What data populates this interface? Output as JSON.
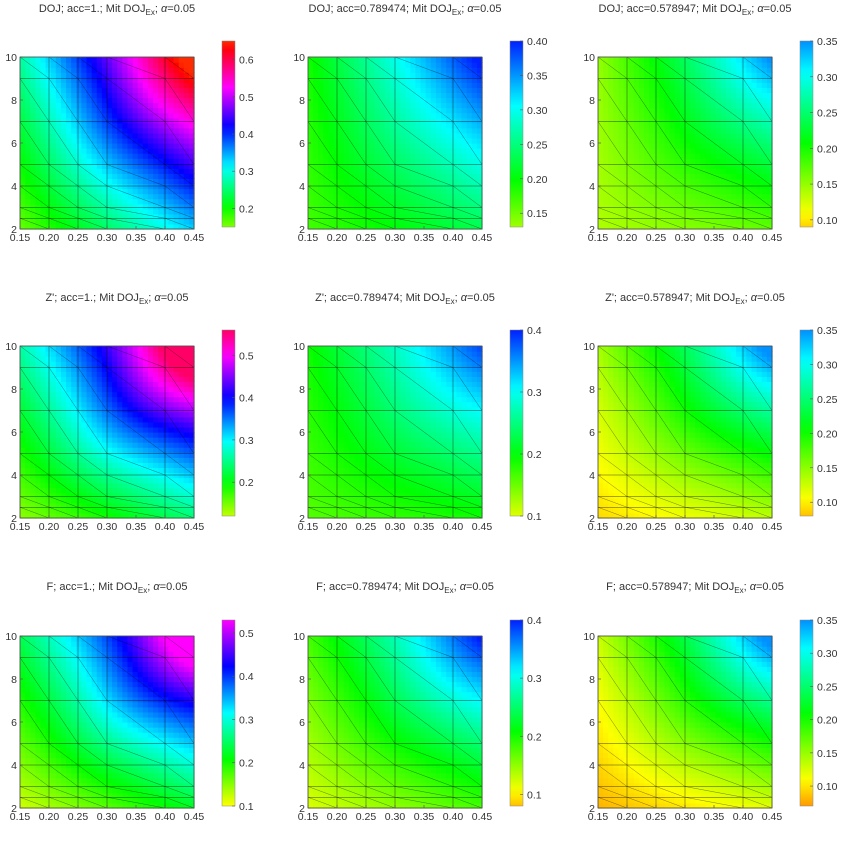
{
  "chart_data": [
    {
      "type": "heatmap",
      "metric": "DOJ",
      "acc": "1.",
      "alpha": "0.05",
      "title": {
        "pre": "DOJ; acc=1.; Mit DOJ",
        "sub": "Ex",
        "mid": "; ",
        "greek": "α",
        "post": "=0.05"
      },
      "xticks": [
        "0.15",
        "0.20",
        "0.25",
        "0.30",
        "0.35",
        "0.40",
        "0.45"
      ],
      "yticks": [
        "2",
        "4",
        "6",
        "8",
        "10"
      ],
      "xlim": [
        0.15,
        0.45
      ],
      "ylim": [
        2,
        10
      ],
      "colorbar": {
        "ticks": [
          "0.2",
          "0.3",
          "0.4",
          "0.5",
          "0.6"
        ],
        "range": [
          0.15,
          0.65
        ],
        "min_color": "#80ff00",
        "max_color": "#ff2a00"
      },
      "corners": {
        "bottom_left": 0.16,
        "bottom_right": 0.33,
        "top_left": 0.27,
        "top_right": 0.63,
        "center": 0.33,
        "diagonal_ridge": 0.38
      }
    },
    {
      "type": "heatmap",
      "metric": "DOJ",
      "acc": "0.789474",
      "alpha": "0.05",
      "title": {
        "pre": "DOJ; acc=0.789474; Mit DOJ",
        "sub": "Ex",
        "mid": "; ",
        "greek": "α",
        "post": "=0.05"
      },
      "xticks": [
        "0.15",
        "0.20",
        "0.25",
        "0.30",
        "0.35",
        "0.40",
        "0.45"
      ],
      "yticks": [
        "2",
        "4",
        "6",
        "8",
        "10"
      ],
      "xlim": [
        0.15,
        0.45
      ],
      "ylim": [
        2,
        10
      ],
      "colorbar": {
        "ticks": [
          "0.15",
          "0.20",
          "0.25",
          "0.30",
          "0.35",
          "0.40"
        ],
        "range": [
          0.13,
          0.4
        ],
        "min_color": "#a0ff00",
        "max_color": "#0020ff"
      },
      "corners": {
        "bottom_left": 0.17,
        "bottom_right": 0.23,
        "top_left": 0.19,
        "top_right": 0.4,
        "center": 0.22,
        "diagonal_ridge": 0.23
      }
    },
    {
      "type": "heatmap",
      "metric": "DOJ",
      "acc": "0.578947",
      "alpha": "0.05",
      "title": {
        "pre": "DOJ; acc=0.578947; Mit DOJ",
        "sub": "Ex",
        "mid": "; ",
        "greek": "α",
        "post": "=0.05"
      },
      "xticks": [
        "0.15",
        "0.20",
        "0.25",
        "0.30",
        "0.35",
        "0.40",
        "0.45"
      ],
      "yticks": [
        "2",
        "4",
        "6",
        "8",
        "10"
      ],
      "xlim": [
        0.15,
        0.45
      ],
      "ylim": [
        2,
        10
      ],
      "colorbar": {
        "ticks": [
          "0.10",
          "0.15",
          "0.20",
          "0.25",
          "0.30",
          "0.35"
        ],
        "range": [
          0.09,
          0.35
        ],
        "min_color": "#ffd000",
        "max_color": "#0090ff"
      },
      "corners": {
        "bottom_left": 0.14,
        "bottom_right": 0.17,
        "top_left": 0.15,
        "top_right": 0.33,
        "center": 0.16,
        "diagonal_ridge": 0.18
      }
    },
    {
      "type": "heatmap",
      "metric": "Z'",
      "acc": "1.",
      "alpha": "0.05",
      "title": {
        "pre": "Z'; acc=1.; Mit DOJ",
        "sub": "Ex",
        "mid": "; ",
        "greek": "α",
        "post": "=0.05"
      },
      "xticks": [
        "0.15",
        "0.20",
        "0.25",
        "0.30",
        "0.35",
        "0.40",
        "0.45"
      ],
      "yticks": [
        "2",
        "4",
        "6",
        "8",
        "10"
      ],
      "xlim": [
        0.15,
        0.45
      ],
      "ylim": [
        2,
        10
      ],
      "colorbar": {
        "ticks": [
          "0.2",
          "0.3",
          "0.4",
          "0.5"
        ],
        "range": [
          0.12,
          0.56
        ],
        "min_color": "#c0ff00",
        "max_color": "#ff0066"
      },
      "corners": {
        "bottom_left": 0.14,
        "bottom_right": 0.24,
        "top_left": 0.26,
        "top_right": 0.55,
        "center": 0.26,
        "diagonal_ridge": 0.34
      }
    },
    {
      "type": "heatmap",
      "metric": "Z'",
      "acc": "0.789474",
      "alpha": "0.05",
      "title": {
        "pre": "Z'; acc=0.789474; Mit DOJ",
        "sub": "Ex",
        "mid": "; ",
        "greek": "α",
        "post": "=0.05"
      },
      "xticks": [
        "0.15",
        "0.20",
        "0.25",
        "0.30",
        "0.35",
        "0.40",
        "0.45"
      ],
      "yticks": [
        "2",
        "4",
        "6",
        "8",
        "10"
      ],
      "xlim": [
        0.15,
        0.45
      ],
      "ylim": [
        2,
        10
      ],
      "colorbar": {
        "ticks": [
          "0.1",
          "0.2",
          "0.3",
          "0.4"
        ],
        "range": [
          0.1,
          0.4
        ],
        "min_color": "#e0ff00",
        "max_color": "#0020ff"
      },
      "corners": {
        "bottom_left": 0.16,
        "bottom_right": 0.19,
        "top_left": 0.19,
        "top_right": 0.36,
        "center": 0.2,
        "diagonal_ridge": 0.22
      }
    },
    {
      "type": "heatmap",
      "metric": "Z'",
      "acc": "0.578947",
      "alpha": "0.05",
      "title": {
        "pre": "Z'; acc=0.578947; Mit DOJ",
        "sub": "Ex",
        "mid": "; ",
        "greek": "α",
        "post": "=0.05"
      },
      "xticks": [
        "0.15",
        "0.20",
        "0.25",
        "0.30",
        "0.35",
        "0.40",
        "0.45"
      ],
      "yticks": [
        "2",
        "4",
        "6",
        "8",
        "10"
      ],
      "xlim": [
        0.15,
        0.45
      ],
      "ylim": [
        2,
        10
      ],
      "colorbar": {
        "ticks": [
          "0.10",
          "0.15",
          "0.20",
          "0.25",
          "0.30",
          "0.35"
        ],
        "range": [
          0.08,
          0.35
        ],
        "min_color": "#ffc000",
        "max_color": "#0090ff"
      },
      "corners": {
        "bottom_left": 0.09,
        "bottom_right": 0.13,
        "top_left": 0.14,
        "top_right": 0.33,
        "center": 0.13,
        "diagonal_ridge": 0.16
      }
    },
    {
      "type": "heatmap",
      "metric": "F",
      "acc": "1.",
      "alpha": "0.05",
      "title": {
        "pre": "F; acc=1.; Mit DOJ",
        "sub": "Ex",
        "mid": "; ",
        "greek": "α",
        "post": "=0.05"
      },
      "xticks": [
        "0.15",
        "0.20",
        "0.25",
        "0.30",
        "0.35",
        "0.40",
        "0.45"
      ],
      "yticks": [
        "2",
        "4",
        "6",
        "8",
        "10"
      ],
      "xlim": [
        0.15,
        0.45
      ],
      "ylim": [
        2,
        10
      ],
      "colorbar": {
        "ticks": [
          "0.1",
          "0.2",
          "0.3",
          "0.4",
          "0.5"
        ],
        "range": [
          0.1,
          0.53
        ],
        "min_color": "#ffff00",
        "max_color": "#ff00ff"
      },
      "corners": {
        "bottom_left": 0.12,
        "bottom_right": 0.22,
        "top_left": 0.24,
        "top_right": 0.52,
        "center": 0.23,
        "diagonal_ridge": 0.3
      }
    },
    {
      "type": "heatmap",
      "metric": "F",
      "acc": "0.789474",
      "alpha": "0.05",
      "title": {
        "pre": "F; acc=0.789474; Mit DOJ",
        "sub": "Ex",
        "mid": "; ",
        "greek": "α",
        "post": "=0.05"
      },
      "xticks": [
        "0.15",
        "0.20",
        "0.25",
        "0.30",
        "0.35",
        "0.40",
        "0.45"
      ],
      "yticks": [
        "2",
        "4",
        "6",
        "8",
        "10"
      ],
      "xlim": [
        0.15,
        0.45
      ],
      "ylim": [
        2,
        10
      ],
      "colorbar": {
        "ticks": [
          "0.1",
          "0.2",
          "0.3",
          "0.4"
        ],
        "range": [
          0.08,
          0.4
        ],
        "min_color": "#ffc000",
        "max_color": "#0020ff"
      },
      "corners": {
        "bottom_left": 0.12,
        "bottom_right": 0.18,
        "top_left": 0.18,
        "top_right": 0.37,
        "center": 0.18,
        "diagonal_ridge": 0.21
      }
    },
    {
      "type": "heatmap",
      "metric": "F",
      "acc": "0.578947",
      "alpha": "0.05",
      "title": {
        "pre": "F; acc=0.578947; Mit DOJ",
        "sub": "Ex",
        "mid": "; ",
        "greek": "α",
        "post": "=0.05"
      },
      "xticks": [
        "0.15",
        "0.20",
        "0.25",
        "0.30",
        "0.35",
        "0.40",
        "0.45"
      ],
      "yticks": [
        "2",
        "4",
        "6",
        "8",
        "10"
      ],
      "xlim": [
        0.15,
        0.45
      ],
      "ylim": [
        2,
        10
      ],
      "colorbar": {
        "ticks": [
          "0.10",
          "0.15",
          "0.20",
          "0.25",
          "0.30",
          "0.35"
        ],
        "range": [
          0.07,
          0.35
        ],
        "min_color": "#ff9900",
        "max_color": "#0090ff"
      },
      "corners": {
        "bottom_left": 0.08,
        "bottom_right": 0.12,
        "top_left": 0.13,
        "top_right": 0.33,
        "center": 0.12,
        "diagonal_ridge": 0.15
      }
    }
  ]
}
